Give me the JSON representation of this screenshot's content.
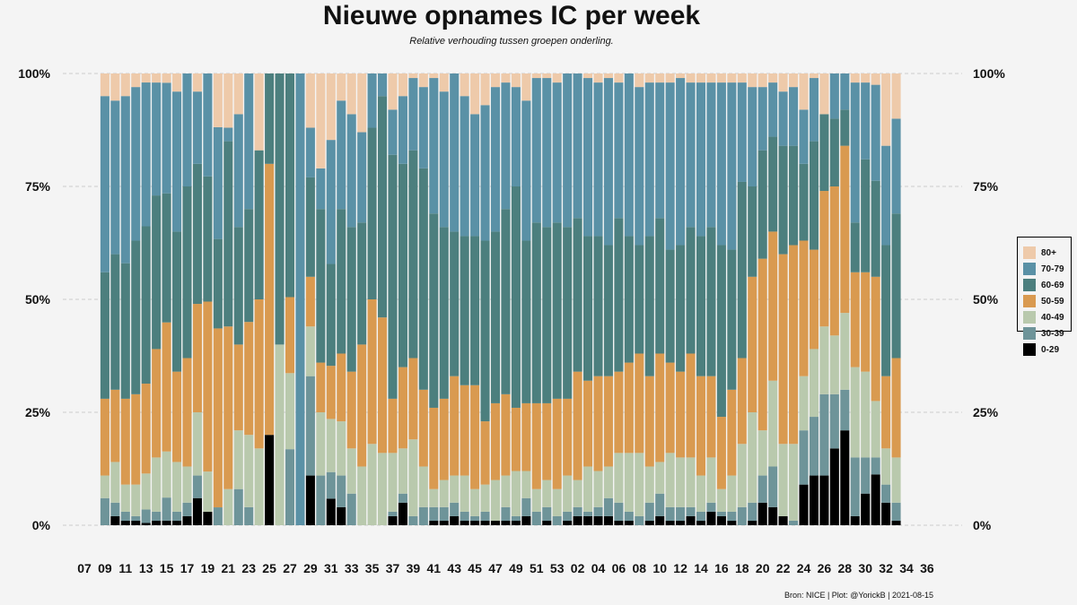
{
  "title": "Nieuwe opnames IC per week",
  "subtitle": "Relative verhouding tussen groepen onderling.",
  "caption": "Bron: NICE | Plot: @YorickB |  2021-08-15",
  "chart_data": {
    "type": "bar",
    "stacked": true,
    "percent": true,
    "title": "Nieuwe opnames IC per week",
    "subtitle": "Relative verhouding tussen groepen onderling.",
    "ylim": [
      0,
      100
    ],
    "y_ticks": [
      "0%",
      "25%",
      "50%",
      "75%",
      "100%"
    ],
    "x_tick_labels": [
      "07",
      "09",
      "11",
      "13",
      "15",
      "17",
      "19",
      "21",
      "23",
      "25",
      "27",
      "29",
      "31",
      "33",
      "35",
      "37",
      "39",
      "41",
      "43",
      "45",
      "47",
      "49",
      "51",
      "53",
      "02",
      "04",
      "06",
      "08",
      "10",
      "12",
      "14",
      "16",
      "18",
      "20",
      "22",
      "24",
      "26",
      "28",
      "30",
      "32",
      "34",
      "36"
    ],
    "grid": "horizontal dashed",
    "legend_position": "right",
    "series_colors": {
      "0-29": "#000000",
      "30-39": "#6e9499",
      "40-49": "#b9c9ad",
      "50-59": "#d99a50",
      "60-69": "#4c7f7e",
      "70-79": "#5a91a6",
      "80+": "#eecaaa"
    },
    "legend_order": [
      "80+",
      "70-79",
      "60-69",
      "50-59",
      "40-49",
      "30-39",
      "0-29"
    ],
    "bars": [
      [
        0,
        6,
        5,
        17,
        28,
        39,
        5
      ],
      [
        2,
        3,
        9,
        16,
        30,
        34,
        6
      ],
      [
        1,
        2,
        6,
        19,
        30,
        37,
        5
      ],
      [
        1,
        1,
        7,
        20,
        34,
        34,
        3
      ],
      [
        0.5,
        3,
        8,
        20,
        35,
        32,
        2
      ],
      [
        1,
        2,
        12,
        24,
        34,
        25,
        2
      ],
      [
        1,
        5,
        10,
        28,
        28,
        24,
        2
      ],
      [
        1,
        2,
        11,
        20,
        31,
        31,
        4
      ],
      [
        2,
        3,
        8,
        24,
        38,
        25,
        0
      ],
      [
        6,
        5,
        14,
        24,
        31,
        16,
        4
      ],
      [
        3,
        0,
        9,
        38,
        28,
        23,
        0
      ],
      [
        0,
        4,
        0,
        40,
        20,
        25,
        12
      ],
      [
        0,
        0,
        8,
        36,
        41,
        3,
        12
      ],
      [
        0,
        8,
        13,
        19,
        26,
        25,
        9
      ],
      [
        0,
        4,
        16,
        25,
        25,
        30,
        0
      ],
      [
        0,
        0,
        17,
        33,
        33,
        0,
        17
      ],
      [
        20,
        0,
        0,
        60,
        20,
        0,
        0
      ],
      [
        0,
        0,
        40,
        0,
        60,
        0,
        0
      ],
      [
        0,
        17,
        17,
        17,
        50,
        0,
        0
      ],
      [
        0,
        0,
        0,
        0,
        0,
        100,
        0
      ],
      [
        11,
        22,
        11,
        11,
        22,
        11,
        12
      ],
      [
        0,
        11,
        14,
        11,
        34,
        9,
        21
      ],
      [
        6,
        6,
        12,
        12,
        23,
        28,
        15
      ],
      [
        4,
        7,
        12,
        15,
        32,
        24,
        6
      ],
      [
        0,
        7,
        10,
        17,
        32,
        25,
        9
      ],
      [
        0,
        0,
        13,
        27,
        27,
        20,
        13
      ],
      [
        0,
        0,
        18,
        32,
        38,
        12,
        0
      ],
      [
        0,
        0,
        16,
        30,
        49,
        5,
        0
      ],
      [
        2,
        1,
        13,
        12,
        54,
        10,
        8
      ],
      [
        5,
        2,
        10,
        18,
        45,
        15,
        5
      ],
      [
        0,
        2,
        17,
        18,
        46,
        16,
        1
      ],
      [
        0,
        4,
        9,
        17,
        49,
        18,
        3
      ],
      [
        1,
        3,
        4,
        18,
        43,
        30,
        1
      ],
      [
        1,
        3,
        6,
        18,
        38,
        30,
        4
      ],
      [
        2,
        3,
        6,
        22,
        32,
        35,
        0
      ],
      [
        1,
        2,
        8,
        20,
        33,
        31,
        5
      ],
      [
        1,
        1,
        6,
        23,
        33,
        27,
        9
      ],
      [
        1,
        2,
        6,
        14,
        40,
        30,
        7
      ],
      [
        1,
        0,
        9,
        17,
        38,
        32,
        3
      ],
      [
        1,
        3,
        7,
        18,
        41,
        28,
        2
      ],
      [
        1,
        1,
        10,
        14,
        49,
        22,
        3
      ],
      [
        2,
        4,
        6,
        15,
        36,
        31,
        6
      ],
      [
        0,
        3,
        5,
        19,
        40,
        32,
        1
      ],
      [
        1,
        3,
        6,
        17,
        39,
        33,
        1
      ],
      [
        0,
        2,
        6,
        20,
        39,
        31,
        2
      ],
      [
        1,
        2,
        8,
        17,
        38,
        34,
        0
      ],
      [
        2,
        2,
        6,
        24,
        34,
        32,
        0
      ],
      [
        2,
        1,
        10,
        19,
        32,
        35,
        1
      ],
      [
        2,
        2,
        8,
        21,
        31,
        34,
        2
      ],
      [
        2,
        4,
        7,
        20,
        29,
        37,
        1
      ],
      [
        1,
        4,
        11,
        18,
        34,
        30,
        2
      ],
      [
        1,
        2,
        13,
        20,
        28,
        36,
        0
      ],
      [
        0,
        2,
        14,
        22,
        24,
        35,
        3
      ],
      [
        1,
        4,
        8,
        20,
        31,
        34,
        2
      ],
      [
        2,
        5,
        7,
        24,
        30,
        30,
        2
      ],
      [
        1,
        3,
        12,
        20,
        25,
        37,
        2
      ],
      [
        1,
        3,
        11,
        19,
        28,
        37,
        1
      ],
      [
        2,
        2,
        11,
        23,
        28,
        32,
        2
      ],
      [
        1,
        2,
        8,
        22,
        31,
        34,
        2
      ],
      [
        3,
        2,
        10,
        18,
        33,
        32,
        2
      ],
      [
        2,
        1,
        5,
        16,
        38,
        36,
        2
      ],
      [
        1,
        2,
        8,
        19,
        31,
        37,
        2
      ],
      [
        0,
        4,
        14,
        19,
        39,
        22,
        2
      ],
      [
        1,
        4,
        20,
        30,
        20,
        22,
        3
      ],
      [
        5,
        6,
        10,
        38,
        24,
        14,
        3
      ],
      [
        4,
        9,
        19,
        33,
        21,
        12,
        2
      ],
      [
        2,
        0,
        16,
        42,
        24,
        12,
        4
      ],
      [
        0,
        1,
        17,
        44,
        22,
        13,
        3
      ],
      [
        9,
        12,
        12,
        30,
        17,
        12,
        8
      ],
      [
        11,
        13,
        15,
        22,
        24,
        14,
        1
      ],
      [
        11,
        18,
        15,
        30,
        17,
        0,
        9
      ],
      [
        17,
        12,
        13,
        33,
        15,
        10,
        0
      ],
      [
        21,
        9,
        17,
        37,
        8,
        8,
        0
      ],
      [
        2,
        13,
        20,
        21,
        11,
        31,
        2
      ],
      [
        7,
        8,
        19,
        22,
        25,
        17,
        2
      ],
      [
        9,
        3,
        10,
        22,
        17,
        17,
        2
      ],
      [
        5,
        4,
        8,
        16,
        29,
        22,
        16
      ],
      [
        1,
        4,
        10,
        22,
        32,
        21,
        10
      ]
    ]
  }
}
